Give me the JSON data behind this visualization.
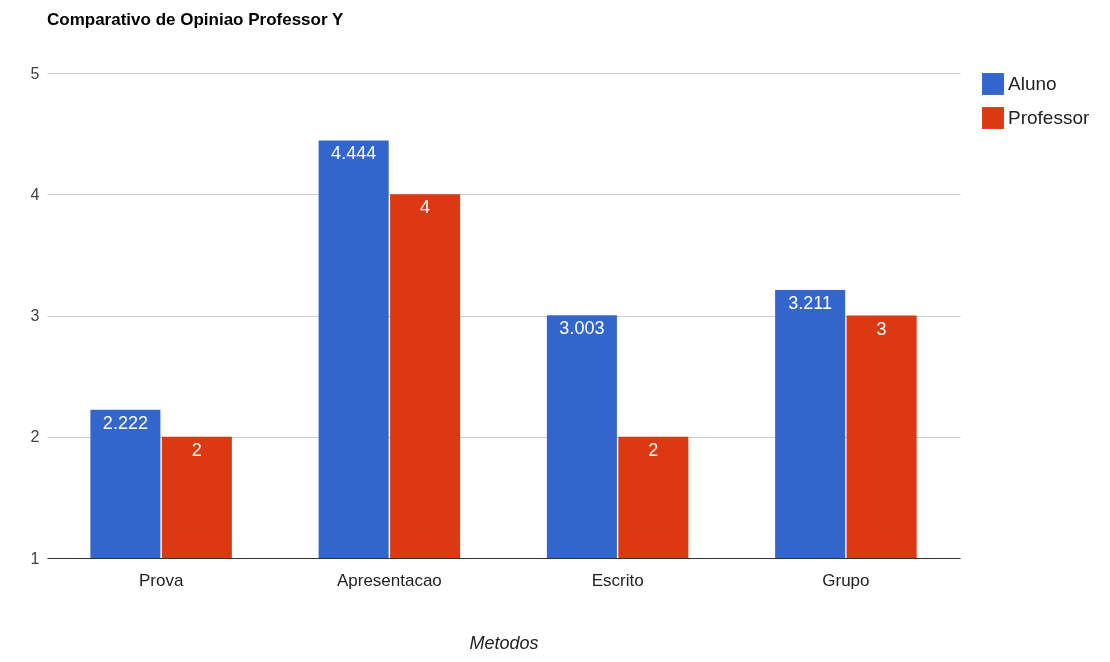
{
  "chart_data": {
    "type": "bar",
    "title": "Comparativo de Opiniao Professor Y",
    "xlabel": "Metodos",
    "categories": [
      "Prova",
      "Apresentacao",
      "Escrito",
      "Grupo"
    ],
    "series": [
      {
        "name": "Aluno",
        "color": "#3366cc",
        "values": [
          2.222,
          4.444,
          3.003,
          3.211
        ]
      },
      {
        "name": "Professor",
        "color": "#dc3912",
        "values": [
          2,
          4,
          2,
          3
        ]
      }
    ],
    "ylim": [
      1,
      5
    ],
    "yticks": [
      1,
      2,
      3,
      4,
      5
    ],
    "grid": "y",
    "legend": "right",
    "data_labels": true
  }
}
